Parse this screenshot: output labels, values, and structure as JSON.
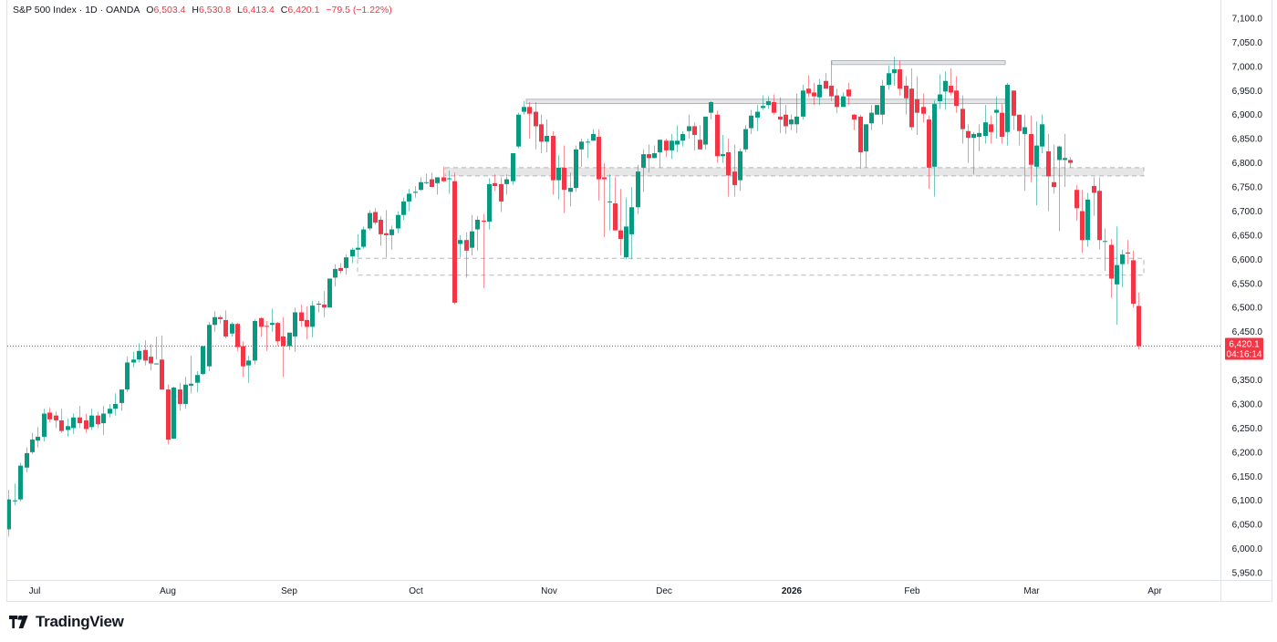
{
  "header": {
    "symbol": "S&P 500 Index",
    "interval": "1D",
    "source": "OANDA",
    "open_label": "O",
    "open": "6,503.4",
    "high_label": "H",
    "high": "6,530.8",
    "low_label": "L",
    "low": "6,413.4",
    "close_label": "C",
    "close": "6,420.1",
    "change": "−79.5 (−1.22%)"
  },
  "price_label": {
    "price": "6,420.1",
    "countdown": "04:16:14"
  },
  "branding": {
    "logo_text": "TradingView"
  },
  "colors": {
    "up": "#089981",
    "down": "#f23645",
    "zone_fill": "#e6e6e6",
    "zone_border": "#b2b5be"
  },
  "chart_data": {
    "type": "candlestick",
    "title": "S&P 500 Index · 1D · OANDA",
    "xlabel": "",
    "ylabel": "",
    "ylim": [
      5925,
      7125
    ],
    "y_ticks": [
      "7,100.0",
      "7,050.0",
      "7,000.0",
      "6,950.0",
      "6,900.0",
      "6,850.0",
      "6,800.0",
      "6,750.0",
      "6,700.0",
      "6,650.0",
      "6,600.0",
      "6,550.0",
      "6,500.0",
      "6,450.0",
      "6,350.0",
      "6,300.0",
      "6,250.0",
      "6,200.0",
      "6,150.0",
      "6,100.0",
      "6,050.0",
      "6,000.0",
      "5,950.0"
    ],
    "y_tick_values": [
      7100,
      7050,
      7000,
      6950,
      6900,
      6850,
      6800,
      6750,
      6700,
      6650,
      6600,
      6550,
      6500,
      6450,
      6350,
      6300,
      6250,
      6200,
      6150,
      6100,
      6050,
      6000,
      5950
    ],
    "x_ticks": [
      {
        "label": "Jul",
        "x": 38
      },
      {
        "label": "Aug",
        "x": 184
      },
      {
        "label": "Sep",
        "x": 317
      },
      {
        "label": "Oct",
        "x": 456
      },
      {
        "label": "Nov",
        "x": 602
      },
      {
        "label": "Dec",
        "x": 728
      },
      {
        "label": "2026",
        "x": 868,
        "bold": true
      },
      {
        "label": "Feb",
        "x": 1000
      },
      {
        "label": "Mar",
        "x": 1131
      },
      {
        "label": "Apr",
        "x": 1266
      }
    ],
    "last_price": 6420.1,
    "grid": false,
    "zones": [
      {
        "name": "resistance-top",
        "x1": 912,
        "x2": 1102,
        "y_high": 7012,
        "y_low": 7004,
        "style": "solid"
      },
      {
        "name": "resistance-mid",
        "x1": 577,
        "x2": 1102,
        "y_high": 6932,
        "y_low": 6923,
        "style": "solid"
      },
      {
        "name": "support-zone-upper",
        "x1": 488,
        "x2": 1254,
        "y_high": 6790,
        "y_low": 6773,
        "style": "dashed"
      },
      {
        "name": "support-zone-lower",
        "x1": 392,
        "x2": 1254,
        "y_high": 6602,
        "y_low": 6567,
        "style": "dashed-open"
      }
    ],
    "candles": [
      [
        9,
        6040,
        6122,
        6025,
        6102
      ],
      [
        16,
        6098,
        6135,
        6090,
        6100
      ],
      [
        22,
        6102,
        6178,
        6098,
        6172
      ],
      [
        29,
        6168,
        6210,
        6158,
        6198
      ],
      [
        35,
        6200,
        6240,
        6196,
        6226
      ],
      [
        41,
        6224,
        6252,
        6210,
        6232
      ],
      [
        48,
        6232,
        6290,
        6222,
        6280
      ],
      [
        54,
        6282,
        6292,
        6262,
        6268
      ],
      [
        61,
        6276,
        6284,
        6250,
        6266
      ],
      [
        67,
        6266,
        6290,
        6240,
        6244
      ],
      [
        74,
        6246,
        6270,
        6232,
        6254
      ],
      [
        80,
        6250,
        6280,
        6238,
        6272
      ],
      [
        87,
        6272,
        6296,
        6250,
        6260
      ],
      [
        94,
        6266,
        6280,
        6240,
        6248
      ],
      [
        100,
        6252,
        6290,
        6246,
        6276
      ],
      [
        107,
        6276,
        6284,
        6250,
        6258
      ],
      [
        113,
        6260,
        6296,
        6236,
        6280
      ],
      [
        120,
        6280,
        6300,
        6272,
        6290
      ],
      [
        126,
        6290,
        6322,
        6276,
        6300
      ],
      [
        133,
        6302,
        6322,
        6286,
        6330
      ],
      [
        139,
        6330,
        6398,
        6324,
        6386
      ],
      [
        146,
        6386,
        6408,
        6376,
        6392
      ],
      [
        152,
        6392,
        6426,
        6386,
        6410
      ],
      [
        159,
        6412,
        6432,
        6380,
        6390
      ],
      [
        165,
        6398,
        6424,
        6370,
        6384
      ],
      [
        171,
        6382,
        6440,
        6392,
        6384
      ],
      [
        177,
        6392,
        6442,
        6330,
        6330
      ],
      [
        184,
        6330,
        6340,
        6216,
        6226
      ],
      [
        190,
        6228,
        6336,
        6230,
        6334
      ],
      [
        197,
        6330,
        6344,
        6286,
        6300
      ],
      [
        203,
        6300,
        6356,
        6290,
        6340
      ],
      [
        209,
        6338,
        6400,
        6322,
        6342
      ],
      [
        216,
        6344,
        6368,
        6324,
        6360
      ],
      [
        222,
        6362,
        6380,
        6360,
        6420
      ],
      [
        229,
        6378,
        6470,
        6368,
        6464
      ],
      [
        235,
        6464,
        6492,
        6450,
        6480
      ],
      [
        241,
        6480,
        6484,
        6466,
        6476
      ],
      [
        247,
        6474,
        6494,
        6436,
        6440
      ],
      [
        254,
        6446,
        6470,
        6440,
        6466
      ],
      [
        260,
        6466,
        6468,
        6410,
        6418
      ],
      [
        266,
        6420,
        6430,
        6356,
        6378
      ],
      [
        272,
        6380,
        6400,
        6344,
        6390
      ],
      [
        279,
        6390,
        6476,
        6382,
        6472
      ],
      [
        286,
        6478,
        6480,
        6440,
        6460
      ],
      [
        292,
        6462,
        6472,
        6410,
        6460
      ],
      [
        298,
        6464,
        6498,
        6450,
        6468
      ],
      [
        304,
        6468,
        6470,
        6420,
        6430
      ],
      [
        310,
        6440,
        6480,
        6356,
        6420
      ],
      [
        317,
        6420,
        6444,
        6412,
        6448
      ],
      [
        323,
        6440,
        6500,
        6408,
        6490
      ],
      [
        330,
        6490,
        6506,
        6460,
        6472
      ],
      [
        336,
        6474,
        6502,
        6434,
        6460
      ],
      [
        342,
        6460,
        6514,
        6438,
        6504
      ],
      [
        349,
        6506,
        6514,
        6490,
        6508
      ],
      [
        355,
        6506,
        6534,
        6480,
        6500
      ],
      [
        361,
        6500,
        6560,
        6500,
        6560
      ],
      [
        367,
        6562,
        6590,
        6544,
        6580
      ],
      [
        373,
        6582,
        6592,
        6570,
        6576
      ],
      [
        379,
        6582,
        6610,
        6568,
        6604
      ],
      [
        386,
        6606,
        6624,
        6592,
        6620
      ],
      [
        392,
        6620,
        6652,
        6604,
        6624
      ],
      [
        398,
        6626,
        6668,
        6622,
        6662
      ],
      [
        405,
        6664,
        6702,
        6660,
        6696
      ],
      [
        411,
        6698,
        6706,
        6672,
        6676
      ],
      [
        417,
        6682,
        6690,
        6628,
        6652
      ],
      [
        423,
        6654,
        6702,
        6604,
        6650
      ],
      [
        429,
        6650,
        6670,
        6620,
        6662
      ],
      [
        436,
        6664,
        6700,
        6654,
        6692
      ],
      [
        442,
        6692,
        6728,
        6682,
        6720
      ],
      [
        448,
        6720,
        6746,
        6700,
        6736
      ],
      [
        455,
        6738,
        6752,
        6728,
        6740
      ],
      [
        461,
        6744,
        6770,
        6742,
        6760
      ],
      [
        467,
        6760,
        6778,
        6756,
        6760
      ],
      [
        473,
        6766,
        6780,
        6750,
        6750
      ],
      [
        479,
        6758,
        6770,
        6734,
        6770
      ],
      [
        486,
        6770,
        6792,
        6760,
        6762
      ],
      [
        492,
        6766,
        6784,
        6736,
        6768
      ],
      [
        498,
        6762,
        6780,
        6506,
        6510
      ],
      [
        504,
        6632,
        6650,
        6604,
        6640
      ],
      [
        511,
        6640,
        6656,
        6562,
        6618
      ],
      [
        517,
        6624,
        6692,
        6608,
        6658
      ],
      [
        523,
        6662,
        6690,
        6618,
        6682
      ],
      [
        530,
        6680,
        6694,
        6540,
        6678
      ],
      [
        536,
        6678,
        6768,
        6662,
        6756
      ],
      [
        542,
        6758,
        6776,
        6742,
        6752
      ],
      [
        549,
        6756,
        6770,
        6698,
        6720
      ],
      [
        555,
        6756,
        6776,
        6734,
        6766
      ],
      [
        562,
        6762,
        6820,
        6754,
        6820
      ],
      [
        568,
        6834,
        6904,
        6830,
        6900
      ],
      [
        574,
        6906,
        6928,
        6900,
        6916
      ],
      [
        580,
        6916,
        6926,
        6850,
        6902
      ],
      [
        587,
        6906,
        6926,
        6828,
        6876
      ],
      [
        593,
        6880,
        6900,
        6820,
        6844
      ],
      [
        599,
        6844,
        6890,
        6822,
        6856
      ],
      [
        606,
        6856,
        6866,
        6734,
        6764
      ],
      [
        612,
        6764,
        6816,
        6724,
        6790
      ],
      [
        618,
        6790,
        6836,
        6696,
        6744
      ],
      [
        625,
        6740,
        6780,
        6710,
        6748
      ],
      [
        631,
        6748,
        6836,
        6740,
        6828
      ],
      [
        637,
        6828,
        6850,
        6792,
        6844
      ],
      [
        644,
        6844,
        6850,
        6810,
        6844
      ],
      [
        650,
        6846,
        6870,
        6846,
        6860
      ],
      [
        656,
        6854,
        6870,
        6722,
        6766
      ],
      [
        662,
        6770,
        6800,
        6646,
        6766
      ],
      [
        668,
        6720,
        6776,
        6660,
        6720
      ],
      [
        674,
        6716,
        6770,
        6660,
        6660
      ],
      [
        680,
        6660,
        6746,
        6608,
        6642
      ],
      [
        686,
        6604,
        6728,
        6600,
        6668
      ],
      [
        692,
        6652,
        6750,
        6600,
        6708
      ],
      [
        699,
        6708,
        6796,
        6694,
        6782
      ],
      [
        705,
        6790,
        6828,
        6740,
        6818
      ],
      [
        711,
        6818,
        6838,
        6780,
        6810
      ],
      [
        717,
        6810,
        6836,
        6810,
        6820
      ],
      [
        723,
        6822,
        6848,
        6790,
        6848
      ],
      [
        730,
        6846,
        6850,
        6812,
        6826
      ],
      [
        736,
        6826,
        6860,
        6808,
        6846
      ],
      [
        742,
        6838,
        6878,
        6822,
        6846
      ],
      [
        748,
        6846,
        6866,
        6834,
        6860
      ],
      [
        755,
        6866,
        6900,
        6850,
        6876
      ],
      [
        761,
        6876,
        6884,
        6826,
        6858
      ],
      [
        767,
        6848,
        6878,
        6836,
        6828
      ],
      [
        773,
        6838,
        6886,
        6828,
        6896
      ],
      [
        779,
        6904,
        6928,
        6890,
        6926
      ],
      [
        786,
        6900,
        6908,
        6800,
        6814
      ],
      [
        792,
        6814,
        6858,
        6800,
        6818
      ],
      [
        798,
        6822,
        6850,
        6730,
        6774
      ],
      [
        805,
        6782,
        6838,
        6730,
        6754
      ],
      [
        811,
        6764,
        6830,
        6742,
        6824
      ],
      [
        817,
        6828,
        6878,
        6822,
        6870
      ],
      [
        823,
        6872,
        6910,
        6860,
        6898
      ],
      [
        830,
        6894,
        6920,
        6866,
        6906
      ],
      [
        836,
        6914,
        6940,
        6910,
        6918
      ],
      [
        842,
        6920,
        6938,
        6912,
        6928
      ],
      [
        848,
        6926,
        6942,
        6900,
        6904
      ],
      [
        855,
        6896,
        6936,
        6862,
        6890
      ],
      [
        861,
        6900,
        6920,
        6860,
        6876
      ],
      [
        867,
        6880,
        6900,
        6868,
        6890
      ],
      [
        873,
        6880,
        6944,
        6862,
        6896
      ],
      [
        880,
        6896,
        6962,
        6890,
        6950
      ],
      [
        886,
        6954,
        6982,
        6936,
        6944
      ],
      [
        892,
        6946,
        6966,
        6920,
        6938
      ],
      [
        898,
        6936,
        6974,
        6920,
        6962
      ],
      [
        905,
        6970,
        6986,
        6956,
        6954
      ],
      [
        911,
        6960,
        7012,
        6928,
        6938
      ],
      [
        917,
        6940,
        6954,
        6904,
        6916
      ],
      [
        924,
        6916,
        6946,
        6920,
        6938
      ],
      [
        930,
        6952,
        6966,
        6920,
        6938
      ],
      [
        936,
        6900,
        6902,
        6868,
        6890
      ],
      [
        943,
        6896,
        6900,
        6788,
        6822
      ],
      [
        949,
        6824,
        6880,
        6790,
        6880
      ],
      [
        955,
        6882,
        6920,
        6868,
        6904
      ],
      [
        961,
        6900,
        6916,
        6902,
        6920
      ],
      [
        967,
        6900,
        6972,
        6880,
        6960
      ],
      [
        974,
        6962,
        7002,
        6952,
        6986
      ],
      [
        980,
        6986,
        7020,
        6960,
        6994
      ],
      [
        986,
        6994,
        7012,
        6940,
        6954
      ],
      [
        993,
        6960,
        6980,
        6900,
        6934
      ],
      [
        999,
        6954,
        6996,
        6868,
        6874
      ],
      [
        1005,
        6932,
        6980,
        6858,
        6904
      ],
      [
        1012,
        6916,
        6944,
        6884,
        6902
      ],
      [
        1018,
        6890,
        6898,
        6746,
        6790
      ],
      [
        1024,
        6792,
        6930,
        6730,
        6922
      ],
      [
        1030,
        6928,
        6984,
        6912,
        6942
      ],
      [
        1036,
        6948,
        6990,
        6910,
        6970
      ],
      [
        1042,
        6960,
        6996,
        6940,
        6946
      ],
      [
        1048,
        6950,
        6980,
        6904,
        6918
      ],
      [
        1055,
        6912,
        6940,
        6840,
        6870
      ],
      [
        1061,
        6866,
        6880,
        6800,
        6852
      ],
      [
        1067,
        6852,
        6864,
        6776,
        6860
      ],
      [
        1073,
        6854,
        6880,
        6824,
        6862
      ],
      [
        1080,
        6856,
        6920,
        6840,
        6884
      ],
      [
        1086,
        6880,
        6898,
        6840,
        6864
      ],
      [
        1092,
        6904,
        6938,
        6850,
        6910
      ],
      [
        1098,
        6904,
        6922,
        6840,
        6854
      ],
      [
        1104,
        6864,
        6966,
        6836,
        6962
      ],
      [
        1111,
        6950,
        6950,
        6868,
        6898
      ],
      [
        1117,
        6900,
        6884,
        6836,
        6866
      ],
      [
        1123,
        6860,
        6900,
        6742,
        6874
      ],
      [
        1130,
        6860,
        6898,
        6760,
        6796
      ],
      [
        1136,
        6792,
        6886,
        6712,
        6836
      ],
      [
        1142,
        6834,
        6900,
        6820,
        6880
      ],
      [
        1149,
        6824,
        6860,
        6700,
        6772
      ],
      [
        1155,
        6760,
        6838,
        6736,
        6750
      ],
      [
        1161,
        6806,
        6836,
        6658,
        6834
      ],
      [
        1167,
        6806,
        6860,
        6750,
        6810
      ],
      [
        1173,
        6806,
        6812,
        6790,
        6800
      ],
      [
        1180,
        6744,
        6754,
        6680,
        6706
      ],
      [
        1186,
        6700,
        6744,
        6614,
        6640
      ],
      [
        1192,
        6640,
        6738,
        6626,
        6724
      ],
      [
        1199,
        6752,
        6770,
        6690,
        6738
      ],
      [
        1205,
        6742,
        6770,
        6620,
        6640
      ],
      [
        1211,
        6638,
        6664,
        6576,
        6638
      ],
      [
        1218,
        6630,
        6642,
        6520,
        6560
      ],
      [
        1224,
        6548,
        6668,
        6464,
        6588
      ],
      [
        1230,
        6590,
        6620,
        6542,
        6610
      ],
      [
        1236,
        6614,
        6640,
        6590,
        6612
      ],
      [
        1242,
        6598,
        6618,
        6500,
        6508
      ],
      [
        1248,
        6503.4,
        6530.8,
        6413.4,
        6420.1
      ]
    ]
  }
}
